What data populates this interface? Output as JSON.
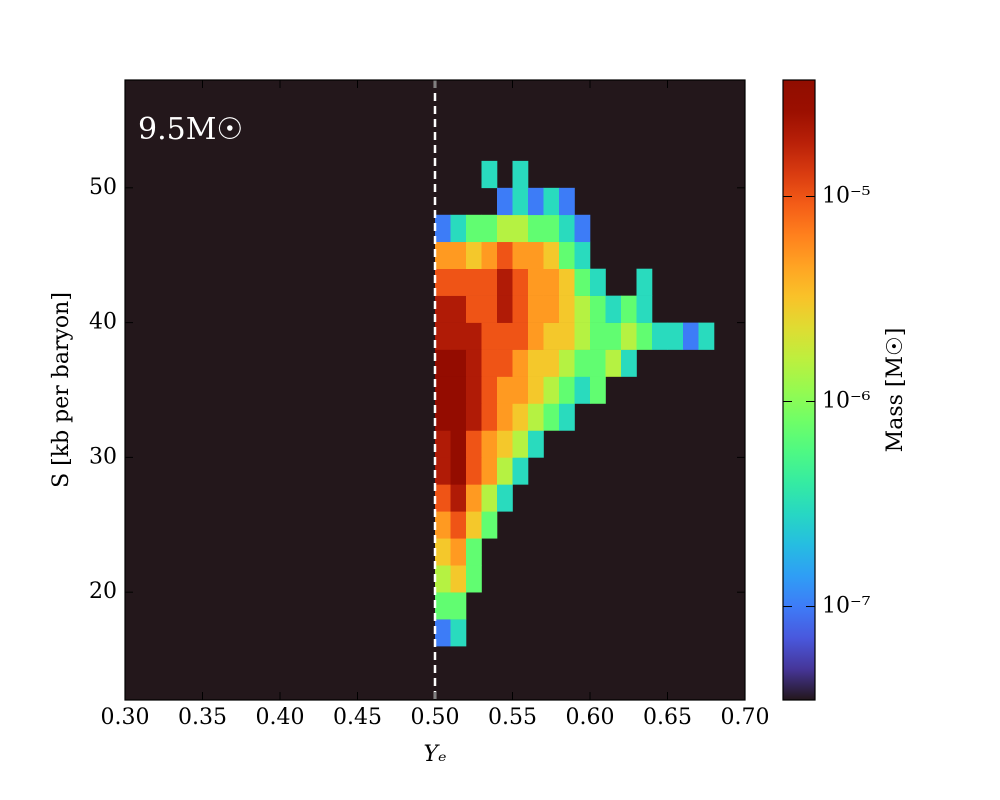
{
  "chart_data": {
    "type": "hist2d",
    "annotation": "9.5M☉",
    "xlabel": "Yₑ",
    "ylabel": "S [kb per baryon]",
    "colorbar_label": "Mass [M☉]",
    "colormap": "turbo",
    "color_scale": "log",
    "vline": 0.5,
    "vline_color": "#ffffff",
    "xlim": [
      0.3,
      0.7
    ],
    "ylim": [
      12,
      58
    ],
    "xticks": [
      {
        "value": 0.3,
        "label": "0.30"
      },
      0.35,
      {
        "value": 0.4,
        "label": "0.40"
      },
      0.45,
      {
        "value": 0.5,
        "label": "0.50"
      },
      0.55,
      {
        "value": 0.6,
        "label": "0.60"
      },
      0.65,
      {
        "value": 0.7,
        "label": "0.70"
      }
    ],
    "yticks": [
      20,
      30,
      40,
      50
    ],
    "clim": [
      3.5e-08,
      3.7e-05
    ],
    "cticks": [
      {
        "value": 1e-07,
        "label": "10⁻⁷"
      },
      {
        "value": 1e-06,
        "label": "10⁻⁶"
      },
      {
        "value": 1e-05,
        "label": "10⁻⁵"
      }
    ],
    "x_edges": [
      0.5,
      0.51,
      0.52,
      0.53,
      0.54,
      0.55,
      0.56,
      0.57,
      0.58,
      0.59,
      0.6,
      0.61,
      0.62,
      0.63,
      0.64,
      0.65,
      0.66,
      0.67,
      0.68
    ],
    "y_edges": [
      16,
      18,
      20,
      22,
      24,
      26,
      28,
      30,
      32,
      34,
      36,
      38,
      40,
      42,
      44,
      46,
      48,
      50,
      52
    ],
    "values": [
      [
        1e-07,
        3e-07,
        null,
        null,
        null,
        null,
        null,
        null,
        null,
        null,
        null,
        null,
        null,
        null,
        null,
        null,
        null,
        null
      ],
      [
        7e-07,
        7e-07,
        null,
        null,
        null,
        null,
        null,
        null,
        null,
        null,
        null,
        null,
        null,
        null,
        null,
        null,
        null,
        null
      ],
      [
        1.5e-06,
        3e-06,
        7e-07,
        null,
        null,
        null,
        null,
        null,
        null,
        null,
        null,
        null,
        null,
        null,
        null,
        null,
        null,
        null
      ],
      [
        3e-06,
        5e-06,
        7e-07,
        null,
        null,
        null,
        null,
        null,
        null,
        null,
        null,
        null,
        null,
        null,
        null,
        null,
        null,
        null
      ],
      [
        5e-06,
        1e-05,
        3e-06,
        7e-07,
        null,
        null,
        null,
        null,
        null,
        null,
        null,
        null,
        null,
        null,
        null,
        null,
        null,
        null
      ],
      [
        1e-05,
        2e-05,
        5e-06,
        1.5e-06,
        3e-07,
        null,
        null,
        null,
        null,
        null,
        null,
        null,
        null,
        null,
        null,
        null,
        null,
        null
      ],
      [
        2e-05,
        3e-05,
        1e-05,
        5e-06,
        1.5e-06,
        3e-07,
        null,
        null,
        null,
        null,
        null,
        null,
        null,
        null,
        null,
        null,
        null,
        null
      ],
      [
        2e-05,
        3e-05,
        1e-05,
        5e-06,
        3e-06,
        1.5e-06,
        3e-07,
        null,
        null,
        null,
        null,
        null,
        null,
        null,
        null,
        null,
        null,
        null
      ],
      [
        3e-05,
        3e-05,
        2e-05,
        1e-05,
        5e-06,
        3e-06,
        1.5e-06,
        7e-07,
        3e-07,
        null,
        null,
        null,
        null,
        null,
        null,
        null,
        null,
        null
      ],
      [
        3e-05,
        3e-05,
        2e-05,
        1e-05,
        5e-06,
        5e-06,
        3e-06,
        1.5e-06,
        7e-07,
        3e-07,
        7e-07,
        null,
        null,
        null,
        null,
        null,
        null,
        null
      ],
      [
        3e-05,
        3e-05,
        2e-05,
        1e-05,
        1e-05,
        5e-06,
        3e-06,
        3e-06,
        1.5e-06,
        7e-07,
        7e-07,
        1.5e-06,
        3e-07,
        null,
        null,
        null,
        null,
        null
      ],
      [
        2e-05,
        2e-05,
        2e-05,
        1e-05,
        1e-05,
        1e-05,
        5e-06,
        3e-06,
        3e-06,
        1.5e-06,
        7e-07,
        7e-07,
        1.5e-06,
        7e-07,
        3e-07,
        3e-07,
        1e-07,
        3e-07
      ],
      [
        2e-05,
        2e-05,
        1e-05,
        1e-05,
        2e-05,
        1e-05,
        5e-06,
        5e-06,
        3e-06,
        1.5e-06,
        7e-07,
        3e-07,
        7e-07,
        3e-07,
        null,
        null,
        null,
        null
      ],
      [
        1e-05,
        1e-05,
        1e-05,
        1e-05,
        2e-05,
        1e-05,
        5e-06,
        5e-06,
        3e-06,
        7e-07,
        3e-07,
        null,
        null,
        3e-07,
        null,
        null,
        null,
        null
      ],
      [
        5e-06,
        5e-06,
        3e-06,
        5e-06,
        1e-05,
        5e-06,
        5e-06,
        3e-06,
        7e-07,
        3e-07,
        null,
        null,
        null,
        null,
        null,
        null,
        null,
        null
      ],
      [
        1e-07,
        3e-07,
        7e-07,
        7e-07,
        1.5e-06,
        1.5e-06,
        7e-07,
        7e-07,
        3e-07,
        1e-07,
        null,
        null,
        null,
        null,
        null,
        null,
        null,
        null
      ],
      [
        null,
        null,
        null,
        null,
        1e-07,
        3e-07,
        1e-07,
        3e-07,
        1e-07,
        null,
        null,
        null,
        null,
        null,
        null,
        null,
        null,
        null
      ],
      [
        null,
        null,
        null,
        3e-07,
        null,
        3e-07,
        null,
        null,
        null,
        null,
        null,
        null,
        null,
        null,
        null,
        null,
        null,
        null
      ]
    ]
  }
}
